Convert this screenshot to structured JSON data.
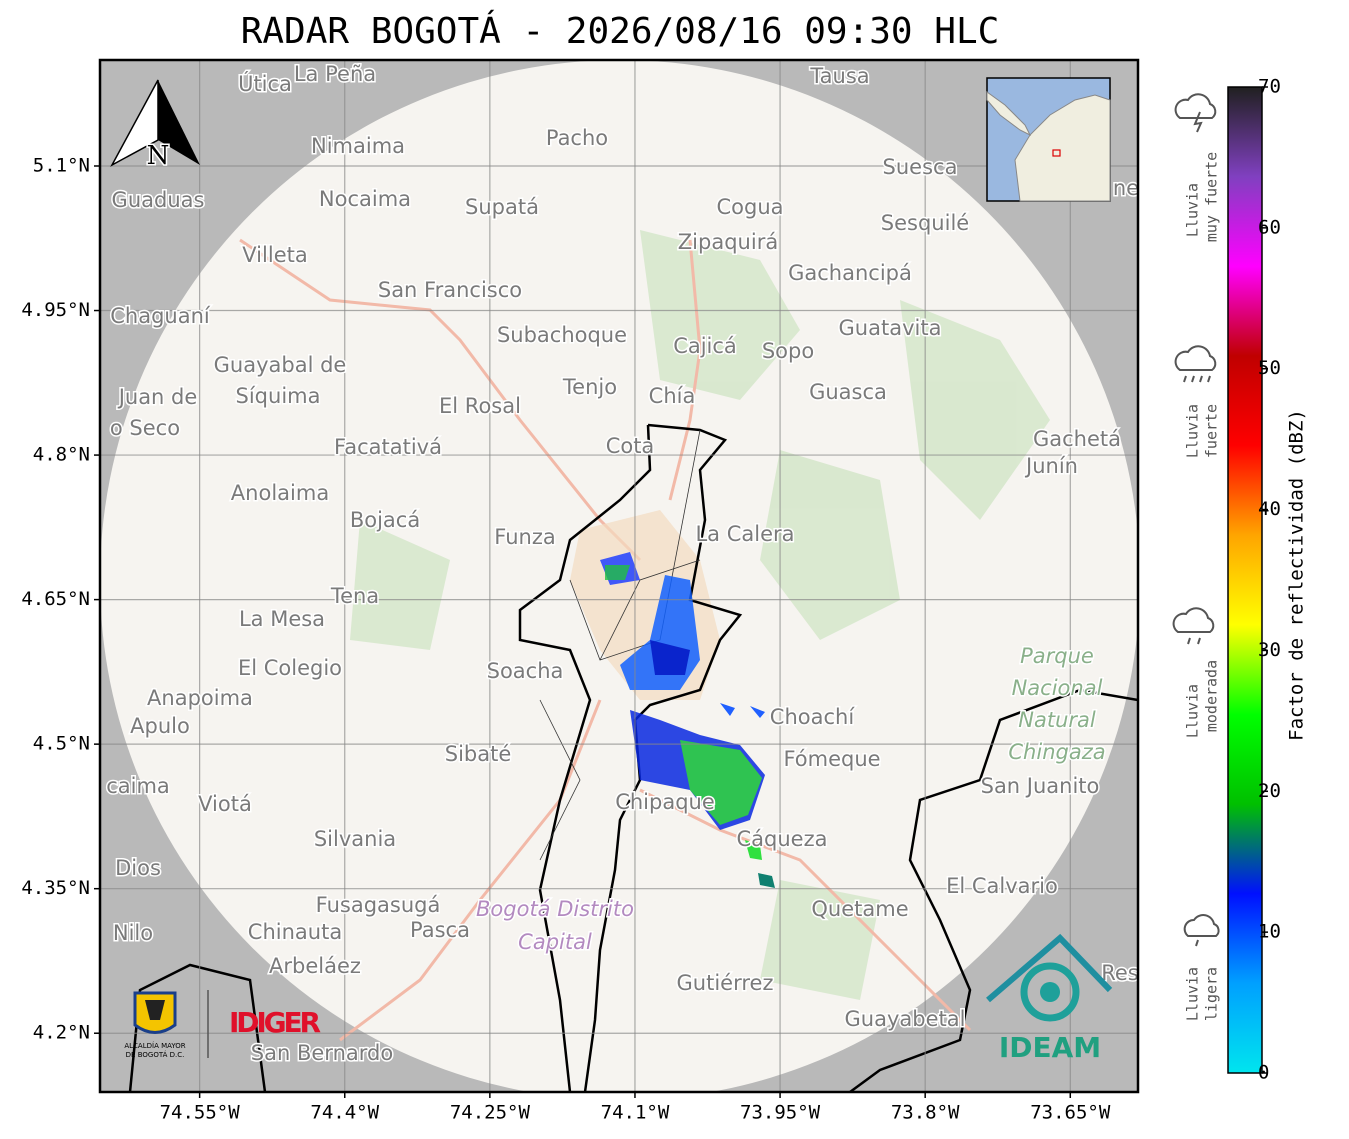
{
  "title": "RADAR BOGOTÁ - 2026/08/16 09:30 HLC",
  "map": {
    "xlim": [
      -74.653,
      -73.58
    ],
    "ylim": [
      4.139,
      5.21
    ],
    "grid": true,
    "xticks": [
      {
        "value": -74.55,
        "label": "74.55°W"
      },
      {
        "value": -74.4,
        "label": "74.4°W"
      },
      {
        "value": -74.25,
        "label": "74.25°W"
      },
      {
        "value": -74.1,
        "label": "74.1°W"
      },
      {
        "value": -73.95,
        "label": "73.95°W"
      },
      {
        "value": -73.8,
        "label": "73.8°W"
      },
      {
        "value": -73.65,
        "label": "73.65°W"
      }
    ],
    "yticks": [
      {
        "value": 4.2,
        "label": "4.2°N"
      },
      {
        "value": 4.35,
        "label": "4.35°N"
      },
      {
        "value": 4.5,
        "label": "4.5°N"
      },
      {
        "value": 4.65,
        "label": "4.65°N"
      },
      {
        "value": 4.8,
        "label": "4.8°N"
      },
      {
        "value": 4.95,
        "label": "4.95°N"
      },
      {
        "value": 5.1,
        "label": "5.1°N"
      }
    ]
  },
  "colorbar": {
    "label": "Factor de reflectividad (dBZ)",
    "lim": [
      0,
      70
    ],
    "ticks": [
      0,
      10,
      20,
      30,
      40,
      50,
      60,
      70
    ],
    "colors": [
      "#00e5ee",
      "#00a0ff",
      "#0010ff",
      "#00c000",
      "#00ff00",
      "#ffff00",
      "#ffa500",
      "#ff0000",
      "#c00000",
      "#ff00ff",
      "#8040c0",
      "#202020"
    ]
  },
  "rain_levels": [
    [
      "Lluvia",
      "muy fuerte"
    ],
    [
      "Lluvia",
      "fuerte"
    ],
    [
      "Lluvia",
      "moderada"
    ],
    [
      "Lluvia",
      "ligera"
    ]
  ],
  "compass": "N",
  "places": [
    "Útica",
    "La Peña",
    "Tausa",
    "Nimaima",
    "Pacho",
    "Suesca",
    "Guaduas",
    "Nocaima",
    "Supatá",
    "Cogua",
    "Sesquilé",
    "Zipaquirá",
    "Villeta",
    "Gachancipá",
    "San Francisco",
    "Chaguaní",
    "Guatavita",
    "Subachoque",
    "Cajicá",
    "Sopo",
    "Guayabal de",
    "Síquima",
    "Tenjo",
    "Chía",
    "Guasca",
    "Juan de",
    "o Seco",
    "El Rosal",
    "Facatativá",
    "Cota",
    "Gachetá",
    "Junín",
    "Anolaima",
    "Bojacá",
    "Funza",
    "La Calera",
    "Tena",
    "La Mesa",
    "Soacha",
    "Parque",
    "Nacional",
    "Natural",
    "Chingaza",
    "El Colegio",
    "Anapoima",
    "Apulo",
    "Choachí",
    "Sibaté",
    "Fómeque",
    "San Juanito",
    "caima",
    "Viotá",
    "Chipaque",
    "Silvania",
    "Cáqueza",
    "Dios",
    "El Calvario",
    "Fusagasugá",
    "Quetame",
    "Bogotá Distrito",
    "Capital",
    "Nilo",
    "Chinauta",
    "Pasca",
    "Arbeláez",
    "Res",
    "Gutiérrez",
    "Guayabetal",
    "San Bernardo",
    "ne"
  ],
  "logos": {
    "idiger": "IDIGER",
    "alcaldia_1": "ALCALDÍA MAYOR",
    "alcaldia_2": "DE BOGOTÁ D.C.",
    "ideam": "IDEAM"
  }
}
